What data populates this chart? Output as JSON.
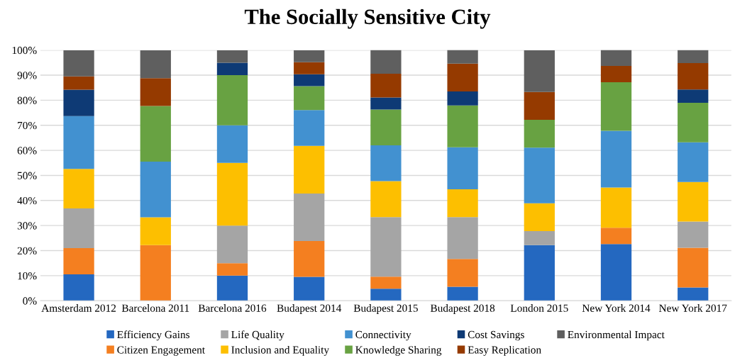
{
  "chart_data": {
    "type": "bar",
    "title": "The Socially Sensitive City",
    "stacked": true,
    "grid": "y",
    "legend": "bottom",
    "categories": [
      "Amsterdam 2012",
      "Barcelona 2011",
      "Barcelona 2016",
      "Budapest 2014",
      "Budapest 2015",
      "Budapest 2018",
      "London 2015",
      "New York 2014",
      "New York 2017"
    ],
    "ylim": [
      0,
      100
    ],
    "yticks": [
      {
        "value": 0,
        "label": "0%"
      },
      {
        "value": 10,
        "label": "10%"
      },
      {
        "value": 20,
        "label": "20%"
      },
      {
        "value": 30,
        "label": "30%"
      },
      {
        "value": 40,
        "label": "40%"
      },
      {
        "value": 50,
        "label": "50%"
      },
      {
        "value": 60,
        "label": "60%"
      },
      {
        "value": 70,
        "label": "70%"
      },
      {
        "value": 80,
        "label": "80%"
      },
      {
        "value": 90,
        "label": "90%"
      },
      {
        "value": 100,
        "label": "100%"
      }
    ],
    "series": [
      {
        "name": "Efficiency Gains",
        "color": "#2468c0",
        "values": [
          10.5,
          0,
          10,
          9.5,
          4.8,
          5.6,
          22.2,
          22.6,
          5.3
        ]
      },
      {
        "name": "Citizen Engagement",
        "color": "#f47f20",
        "values": [
          10.5,
          22.2,
          5,
          14.3,
          4.8,
          11.1,
          0,
          6.5,
          15.8
        ]
      },
      {
        "name": "Life Quality",
        "color": "#a5a5a5",
        "values": [
          15.8,
          0,
          15,
          19.0,
          23.8,
          16.7,
          5.6,
          0,
          10.5
        ]
      },
      {
        "name": "Inclusion and Equality",
        "color": "#fdbf00",
        "values": [
          15.8,
          11.1,
          25,
          19.0,
          14.3,
          11.1,
          11.1,
          16.1,
          15.8
        ]
      },
      {
        "name": "Connectivity",
        "color": "#4291d0",
        "values": [
          21.1,
          22.2,
          15,
          14.3,
          14.3,
          16.7,
          22.2,
          22.6,
          15.8
        ]
      },
      {
        "name": "Knowledge Sharing",
        "color": "#68a242",
        "values": [
          0,
          22.2,
          20,
          9.5,
          14.3,
          16.7,
          11.1,
          19.4,
          15.8
        ]
      },
      {
        "name": "Cost Savings",
        "color": "#0e3a75",
        "values": [
          10.5,
          0,
          5,
          4.8,
          4.8,
          5.6,
          0,
          0,
          5.3
        ]
      },
      {
        "name": "Easy Replication",
        "color": "#953a00",
        "values": [
          5.3,
          11.1,
          0,
          4.8,
          9.5,
          11.1,
          11.1,
          6.5,
          10.5
        ]
      },
      {
        "name": "Environmental Impact",
        "color": "#5f5f5f",
        "values": [
          10.5,
          11.1,
          5,
          4.8,
          9.5,
          5.6,
          16.7,
          6.5,
          5.3
        ]
      }
    ]
  }
}
